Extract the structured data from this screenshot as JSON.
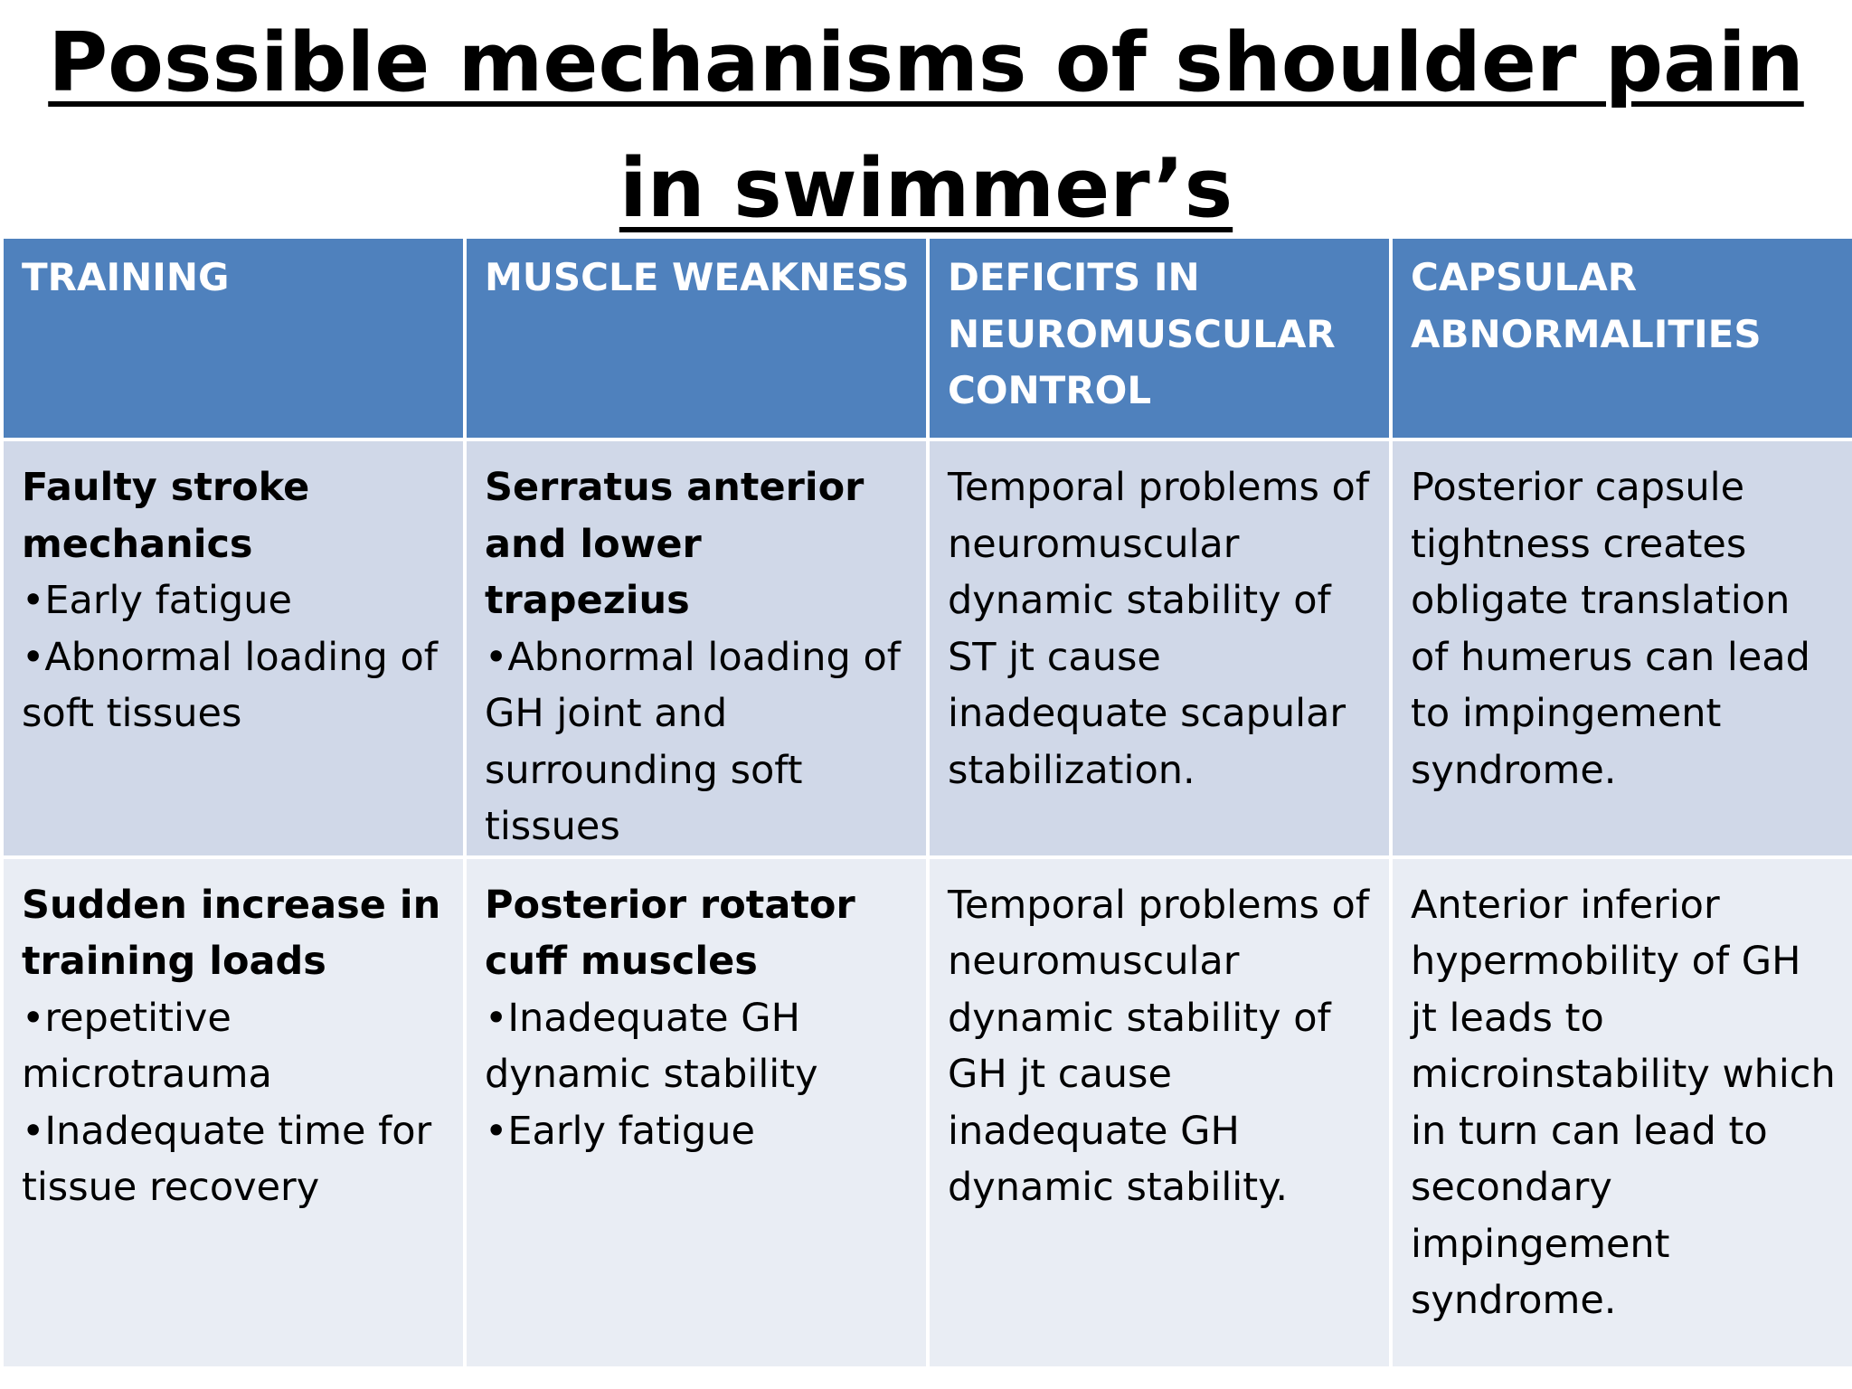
{
  "title": {
    "line1": "Possible mechanisms of shoulder pain",
    "line2": "in swimmer’s"
  },
  "table": {
    "headers": [
      "TRAINING",
      "MUSCLE WEAKNESS",
      "DEFICITS IN NEUROMUSCULAR CONTROL",
      "CAPSULAR ABNORMALITIES"
    ],
    "rows": [
      {
        "training": {
          "heading": "Faulty stroke mechanics",
          "bullets": [
            "•Early fatigue",
            "•Abnormal loading of soft tissues"
          ]
        },
        "muscle_weakness": {
          "heading": "Serratus anterior and lower trapezius",
          "bullets": [
            "•Abnormal loading of GH joint and surrounding soft tissues"
          ]
        },
        "neuromuscular": "Temporal problems of neuromuscular dynamic stability of ST jt cause inadequate scapular stabilization.",
        "capsular": "Posterior capsule tightness creates obligate translation of humerus can lead to impingement syndrome."
      },
      {
        "training": {
          "heading": "Sudden increase in training loads",
          "bullets": [
            "•repetitive microtrauma",
            "•Inadequate time for tissue recovery"
          ]
        },
        "muscle_weakness": {
          "heading": "Posterior rotator cuff muscles",
          "bullets": [
            "•Inadequate GH dynamic stability",
            "•Early fatigue"
          ]
        },
        "neuromuscular": "Temporal problems of neuromuscular dynamic stability of GH jt cause inadequate GH dynamic stability.",
        "capsular": "Anterior inferior hypermobility of GH jt leads to microinstability which in turn can lead to secondary impingement syndrome."
      }
    ]
  }
}
